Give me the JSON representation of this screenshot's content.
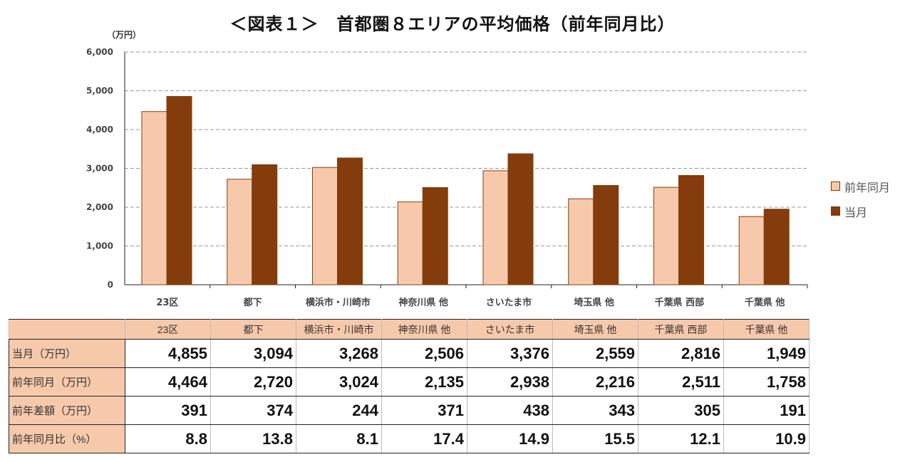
{
  "title": "＜図表１＞　首都圏８エリアの平均価格（前年同月比）",
  "chart_data": {
    "type": "bar",
    "title": "＜図表１＞　首都圏８エリアの平均価格（前年同月比）",
    "ylabel": "（万円）",
    "ylim": [
      0,
      6000
    ],
    "yticks": [
      "0",
      "1,000",
      "2,000",
      "3,000",
      "4,000",
      "5,000",
      "6,000"
    ],
    "grid": true,
    "legend_position": "right",
    "categories": [
      "23区",
      "都下",
      "横浜市・川崎市",
      "神奈川県 他",
      "さいたま市",
      "埼玉県 他",
      "千葉県 西部",
      "千葉県 他"
    ],
    "series": [
      {
        "name": "前年同月",
        "color": "#f7c9ab",
        "values": [
          4464,
          2720,
          3024,
          2135,
          2938,
          2216,
          2511,
          1758
        ]
      },
      {
        "name": "当月",
        "color": "#843c0c",
        "values": [
          4855,
          3094,
          3268,
          2506,
          3376,
          2559,
          2816,
          1949
        ]
      }
    ]
  },
  "table": {
    "headers": [
      "23区",
      "都下",
      "横浜市・川崎市",
      "神奈川県 他",
      "さいたま市",
      "埼玉県 他",
      "千葉県 西部",
      "千葉県 他"
    ],
    "rows": [
      {
        "label": "当月（万円）",
        "values": [
          "4,855",
          "3,094",
          "3,268",
          "2,506",
          "3,376",
          "2,559",
          "2,816",
          "1,949"
        ]
      },
      {
        "label": "前年同月（万円）",
        "values": [
          "4,464",
          "2,720",
          "3,024",
          "2,135",
          "2,938",
          "2,216",
          "2,511",
          "1,758"
        ]
      },
      {
        "label": "前年差額（万円）",
        "values": [
          "391",
          "374",
          "244",
          "371",
          "438",
          "343",
          "305",
          "191"
        ]
      },
      {
        "label": "前年同月比（%）",
        "values": [
          "8.8",
          "13.8",
          "8.1",
          "17.4",
          "14.9",
          "15.5",
          "12.1",
          "10.9"
        ]
      }
    ]
  }
}
